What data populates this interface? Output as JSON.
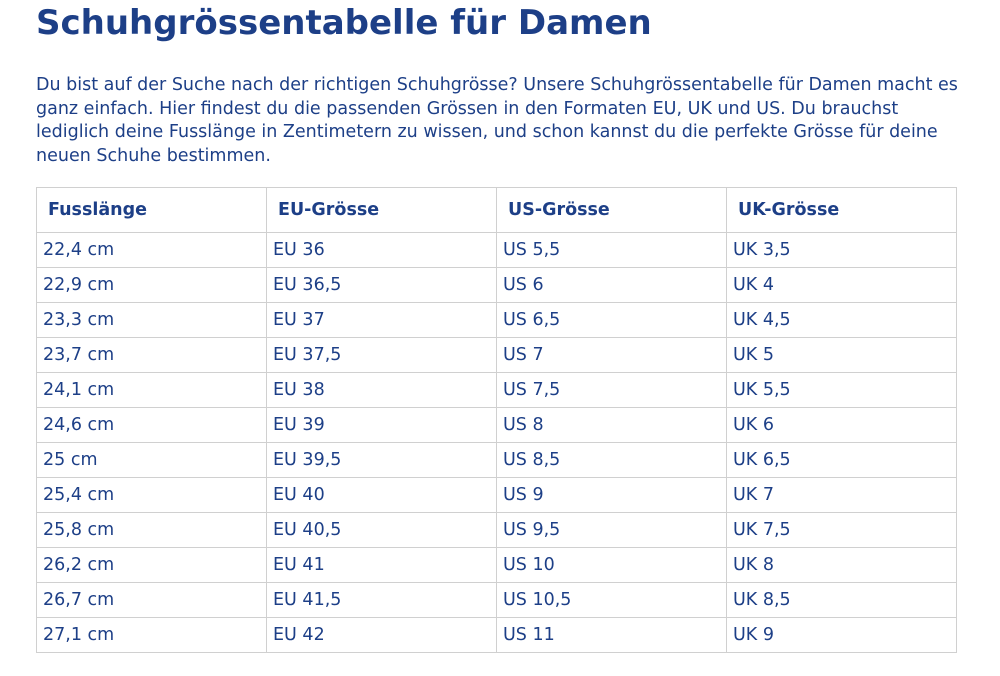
{
  "title": "Schuhgrössentabelle für Damen",
  "intro": "Du bist auf der Suche nach der richtigen Schuhgrösse? Unsere Schuhgrössentabelle für Damen macht es ganz einfach. Hier findest du die passenden Grössen in den Formaten EU, UK und US. Du brauchst lediglich deine Fusslänge in Zentimetern zu wissen, und schon kannst du die perfekte Grösse für deine neuen Schuhe bestimmen.",
  "table": {
    "headers": [
      "Fusslänge",
      "EU-Grösse",
      "US-Grösse",
      "UK-Grösse"
    ],
    "rows": [
      [
        "22,4 cm",
        "EU 36",
        "US 5,5",
        "UK 3,5"
      ],
      [
        "22,9 cm",
        "EU 36,5",
        "US 6",
        "UK 4"
      ],
      [
        "23,3 cm",
        "EU 37",
        "US 6,5",
        "UK 4,5"
      ],
      [
        "23,7 cm",
        "EU 37,5",
        "US 7",
        "UK 5"
      ],
      [
        "24,1 cm",
        "EU 38",
        "US 7,5",
        "UK 5,5"
      ],
      [
        "24,6 cm",
        "EU 39",
        "US 8",
        "UK 6"
      ],
      [
        "25 cm",
        "EU 39,5",
        "US 8,5",
        "UK 6,5"
      ],
      [
        "25,4 cm",
        "EU 40",
        "US 9",
        "UK 7"
      ],
      [
        "25,8 cm",
        "EU 40,5",
        "US 9,5",
        "UK 7,5"
      ],
      [
        "26,2 cm",
        "EU 41",
        "US 10",
        "UK 8"
      ],
      [
        "26,7 cm",
        "EU 41,5",
        "US 10,5",
        "UK 8,5"
      ],
      [
        "27,1 cm",
        "EU 42",
        "US 11",
        "UK 9"
      ]
    ]
  },
  "colors": {
    "text": "#1d3f87",
    "border": "#d0d0d0",
    "background": "#ffffff"
  }
}
